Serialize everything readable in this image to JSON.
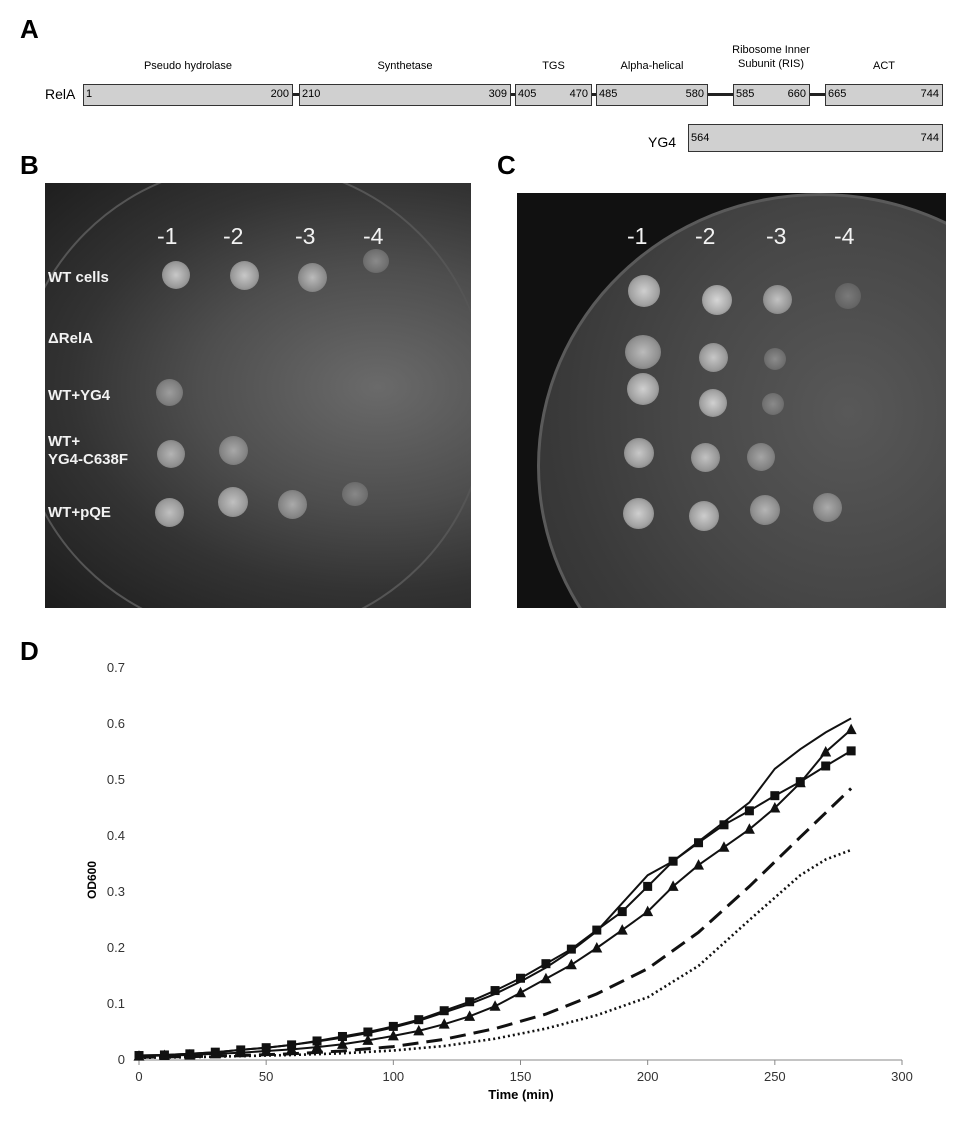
{
  "panels": {
    "a": "A",
    "b": "B",
    "c": "C",
    "d": "D"
  },
  "relA": {
    "label": "RelA",
    "domains": [
      {
        "title": "Pseudo hydrolase",
        "start": "1",
        "end": "200"
      },
      {
        "title": "Synthetase",
        "start": "210",
        "end": "309"
      },
      {
        "title": "TGS",
        "start": "405",
        "end": "470"
      },
      {
        "title": "Alpha-helical",
        "start": "485",
        "end": "580"
      },
      {
        "title": "Ribosome Inner Subunit (RIS)",
        "start": "585",
        "end": "660"
      },
      {
        "title": "ACT",
        "start": "665",
        "end": "744"
      }
    ]
  },
  "yg4": {
    "label": "YG4",
    "start": "564",
    "end": "744"
  },
  "plates": {
    "dilutions": [
      "-1",
      "-2",
      "-3",
      "-4"
    ],
    "strains": [
      "WT cells",
      "ΔRelA",
      "WT+YG4",
      "WT+",
      "YG4-C638F",
      "WT+pQE"
    ]
  },
  "chart_data": {
    "type": "line",
    "xlabel": "Time (min)",
    "ylabel": "OD600",
    "xlim": [
      0,
      300
    ],
    "ylim": [
      0,
      0.7
    ],
    "xticks": [
      0,
      50,
      100,
      150,
      200,
      250,
      300
    ],
    "yticks": [
      0,
      0.1,
      0.2,
      0.3,
      0.4,
      0.5,
      0.6,
      0.7
    ],
    "series": [
      {
        "style": "solid",
        "marker": "none",
        "x": [
          0,
          10,
          20,
          30,
          40,
          50,
          60,
          70,
          80,
          90,
          100,
          110,
          120,
          130,
          140,
          150,
          160,
          170,
          180,
          190,
          200,
          210,
          220,
          230,
          240,
          250,
          260,
          270,
          280
        ],
        "y": [
          0.008,
          0.009,
          0.011,
          0.014,
          0.018,
          0.022,
          0.027,
          0.033,
          0.04,
          0.048,
          0.058,
          0.07,
          0.085,
          0.1,
          0.118,
          0.14,
          0.165,
          0.195,
          0.23,
          0.28,
          0.33,
          0.355,
          0.39,
          0.425,
          0.46,
          0.52,
          0.555,
          0.585,
          0.61
        ]
      },
      {
        "style": "solid",
        "marker": "square",
        "x": [
          0,
          10,
          20,
          30,
          40,
          50,
          60,
          70,
          80,
          90,
          100,
          110,
          120,
          130,
          140,
          150,
          160,
          170,
          180,
          190,
          200,
          210,
          220,
          230,
          240,
          250,
          260,
          270,
          280
        ],
        "y": [
          0.008,
          0.009,
          0.011,
          0.014,
          0.018,
          0.022,
          0.027,
          0.034,
          0.042,
          0.05,
          0.06,
          0.072,
          0.088,
          0.104,
          0.124,
          0.146,
          0.172,
          0.198,
          0.232,
          0.265,
          0.31,
          0.355,
          0.388,
          0.42,
          0.445,
          0.472,
          0.497,
          0.525,
          0.552
        ]
      },
      {
        "style": "solid",
        "marker": "triangle",
        "x": [
          0,
          10,
          20,
          30,
          40,
          50,
          60,
          70,
          80,
          90,
          100,
          110,
          120,
          130,
          140,
          150,
          160,
          170,
          180,
          190,
          200,
          210,
          220,
          230,
          240,
          250,
          260,
          270,
          280
        ],
        "y": [
          0.007,
          0.008,
          0.009,
          0.011,
          0.013,
          0.016,
          0.019,
          0.023,
          0.028,
          0.035,
          0.043,
          0.052,
          0.064,
          0.078,
          0.096,
          0.12,
          0.145,
          0.17,
          0.2,
          0.232,
          0.265,
          0.31,
          0.348,
          0.38,
          0.412,
          0.45,
          0.495,
          0.55,
          0.59
        ]
      },
      {
        "style": "dashed",
        "marker": "none",
        "x": [
          0,
          20,
          40,
          60,
          80,
          100,
          120,
          140,
          160,
          180,
          200,
          220,
          240,
          260,
          280
        ],
        "y": [
          0.005,
          0.006,
          0.008,
          0.011,
          0.016,
          0.024,
          0.037,
          0.056,
          0.082,
          0.118,
          0.163,
          0.228,
          0.31,
          0.398,
          0.485
        ]
      },
      {
        "style": "dotted",
        "marker": "none",
        "x": [
          0,
          20,
          40,
          60,
          80,
          100,
          120,
          140,
          160,
          180,
          200,
          220,
          240,
          260,
          270,
          280
        ],
        "y": [
          0.004,
          0.005,
          0.007,
          0.009,
          0.012,
          0.017,
          0.025,
          0.038,
          0.056,
          0.08,
          0.112,
          0.168,
          0.25,
          0.33,
          0.358,
          0.375
        ]
      }
    ]
  }
}
